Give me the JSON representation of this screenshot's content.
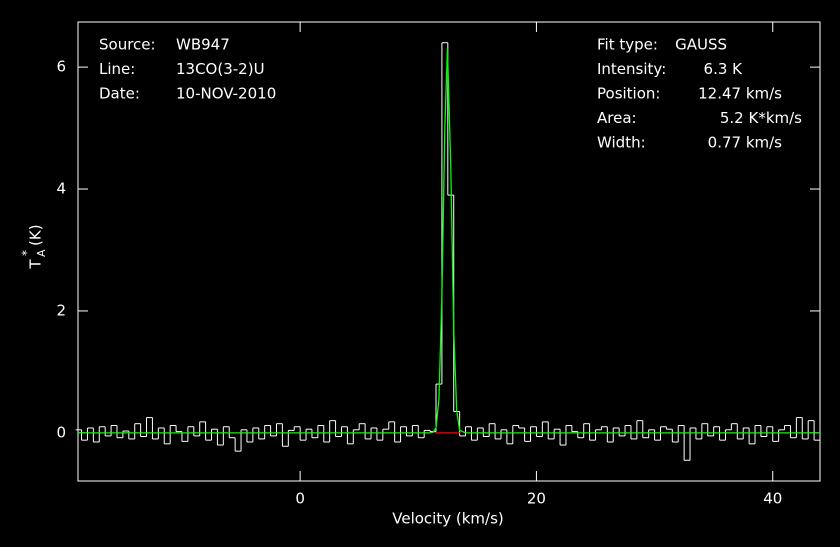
{
  "chart_data": {
    "type": "spectrum",
    "x_label": "Velocity (km/s)",
    "y_label": {
      "base": "T",
      "sup": "*",
      "sub": "A",
      "unit": "(K)"
    },
    "xlim": [
      -18.8,
      44
    ],
    "ylim": [
      -0.79,
      6.74
    ],
    "xticks": [
      0,
      20,
      40
    ],
    "yticks": [
      0,
      2,
      4,
      6
    ],
    "info_left": [
      [
        "Source:",
        "WB947"
      ],
      [
        "Line:",
        "13CO(3-2)U"
      ],
      [
        "Date:",
        "10-NOV-2010"
      ]
    ],
    "info_right": [
      [
        "Fit type:",
        "GAUSS"
      ],
      [
        "Intensity:",
        "6.3 K"
      ],
      [
        "Position:",
        "12.47 km/s"
      ],
      [
        "Area:",
        "5.2 K*km/s"
      ],
      [
        "Width:",
        "0.77 km/s"
      ]
    ],
    "series": [
      {
        "color": "#ffffff",
        "step_width": 0.5,
        "x": [
          -18.75,
          -18.25,
          -17.75,
          -17.25,
          -16.75,
          -16.25,
          -15.75,
          -15.25,
          -14.75,
          -14.25,
          -13.75,
          -13.25,
          -12.75,
          -12.25,
          -11.75,
          -11.25,
          -10.75,
          -10.25,
          -9.75,
          -9.25,
          -8.75,
          -8.25,
          -7.75,
          -7.25,
          -6.75,
          -6.25,
          -5.75,
          -5.25,
          -4.75,
          -4.25,
          -3.75,
          -3.25,
          -2.75,
          -2.25,
          -1.75,
          -1.25,
          -0.75,
          -0.25,
          0.25,
          0.75,
          1.25,
          1.75,
          2.25,
          2.75,
          3.25,
          3.75,
          4.25,
          4.75,
          5.25,
          5.75,
          6.25,
          6.75,
          7.25,
          7.75,
          8.25,
          8.75,
          9.25,
          9.75,
          10.25,
          10.75,
          11.25,
          11.75,
          12.25,
          12.75,
          13.25,
          13.75,
          14.25,
          14.75,
          15.25,
          15.75,
          16.25,
          16.75,
          17.25,
          17.75,
          18.25,
          18.75,
          19.25,
          19.75,
          20.25,
          20.75,
          21.25,
          21.75,
          22.25,
          22.75,
          23.25,
          23.75,
          24.25,
          24.75,
          25.25,
          25.75,
          26.25,
          26.75,
          27.25,
          27.75,
          28.25,
          28.75,
          29.25,
          29.75,
          30.25,
          30.75,
          31.25,
          31.75,
          32.25,
          32.75,
          33.25,
          33.75,
          34.25,
          34.75,
          35.25,
          35.75,
          36.25,
          36.75,
          37.25,
          37.75,
          38.25,
          38.75,
          39.25,
          39.75,
          40.25,
          40.75,
          41.25,
          41.75,
          42.25,
          42.75,
          43.25,
          43.75
        ],
        "values": [
          0.05,
          -0.12,
          0.08,
          -0.15,
          0.1,
          -0.05,
          0.12,
          -0.08,
          0.03,
          -0.1,
          0.15,
          -0.06,
          0.25,
          -0.1,
          0.08,
          -0.18,
          0.12,
          0.02,
          -0.14,
          0.1,
          -0.05,
          0.18,
          -0.12,
          0.06,
          -0.2,
          0.1,
          -0.08,
          -0.3,
          0.05,
          -0.15,
          0.08,
          -0.1,
          0.12,
          -0.05,
          0.15,
          -0.22,
          0.04,
          0.1,
          -0.12,
          0.06,
          -0.08,
          0.12,
          -0.15,
          0.2,
          -0.06,
          0.1,
          -0.18,
          0.05,
          0.15,
          -0.1,
          0.08,
          -0.12,
          0.06,
          0.18,
          -0.15,
          0.1,
          -0.05,
          0.12,
          -0.08,
          0.04,
          0.02,
          0.8,
          6.4,
          3.9,
          0.35,
          -0.05,
          0.1,
          -0.12,
          0.08,
          -0.06,
          0.15,
          -0.1,
          0.05,
          -0.18,
          0.12,
          0.08,
          -0.14,
          0.1,
          -0.06,
          0.18,
          -0.1,
          0.06,
          -0.2,
          0.12,
          0.02,
          -0.08,
          0.15,
          -0.12,
          0.05,
          0.1,
          -0.15,
          0.08,
          -0.05,
          0.12,
          -0.1,
          0.2,
          -0.08,
          0.05,
          -0.12,
          0.1,
          0.06,
          -0.15,
          0.12,
          -0.45,
          0.08,
          -0.1,
          0.15,
          -0.05,
          0.1,
          -0.12,
          0.05,
          0.15,
          -0.1,
          0.08,
          -0.18,
          0.12,
          -0.06,
          0.1,
          -0.14,
          0.05,
          0.12,
          -0.08,
          0.25,
          -0.1,
          0.2,
          -0.12
        ]
      },
      {
        "color": "#00ff00",
        "x": [
          -18.8,
          10.5,
          11.0,
          11.25,
          11.5,
          11.75,
          12.0,
          12.25,
          12.47,
          12.75,
          13.0,
          13.25,
          13.5,
          14,
          44
        ],
        "values": [
          0,
          0,
          0,
          0.01,
          0.08,
          0.56,
          2.24,
          5.03,
          6.3,
          4.37,
          1.7,
          0.37,
          0.04,
          0,
          0
        ]
      },
      {
        "color": "#ff0000",
        "x": [
          11.4,
          13.6
        ],
        "values": [
          0,
          0
        ]
      }
    ]
  }
}
